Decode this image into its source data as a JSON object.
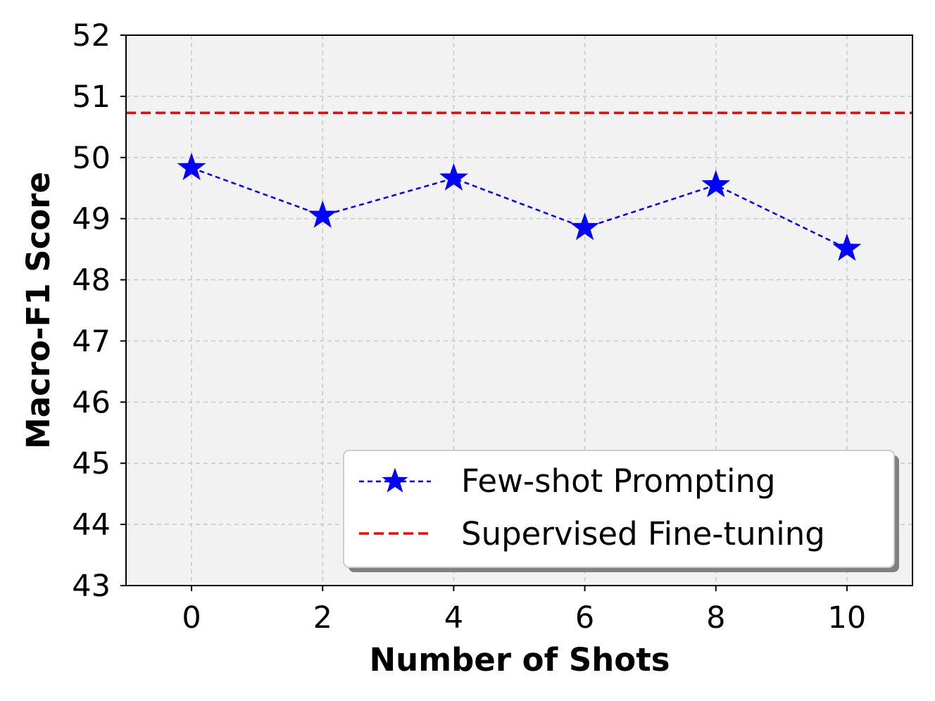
{
  "chart_data": {
    "type": "line",
    "xlabel": "Number of Shots",
    "ylabel": "Macro-F1 Score",
    "x": [
      0,
      2,
      4,
      6,
      8,
      10
    ],
    "xticks": [
      0,
      2,
      4,
      6,
      8,
      10
    ],
    "yticks": [
      43,
      44,
      45,
      46,
      47,
      48,
      49,
      50,
      51,
      52
    ],
    "xlim": [
      -1,
      11
    ],
    "ylim": [
      43,
      52
    ],
    "grid": true,
    "legend_position": "lower-right",
    "series": [
      {
        "name": "Few-shot Prompting",
        "values": [
          49.83,
          49.05,
          49.66,
          48.85,
          49.55,
          48.51
        ],
        "color": "#0000ff",
        "line_style": "dashed",
        "marker": "star"
      },
      {
        "name": "Supervised Fine-tuning",
        "value": 50.73,
        "color": "#ff0000",
        "line_style": "dashed",
        "kind": "horizontal-reference"
      }
    ],
    "colors": {
      "plot_background": "#f2f2f2",
      "grid": "#c8c8c8",
      "axes": "#000000"
    }
  }
}
